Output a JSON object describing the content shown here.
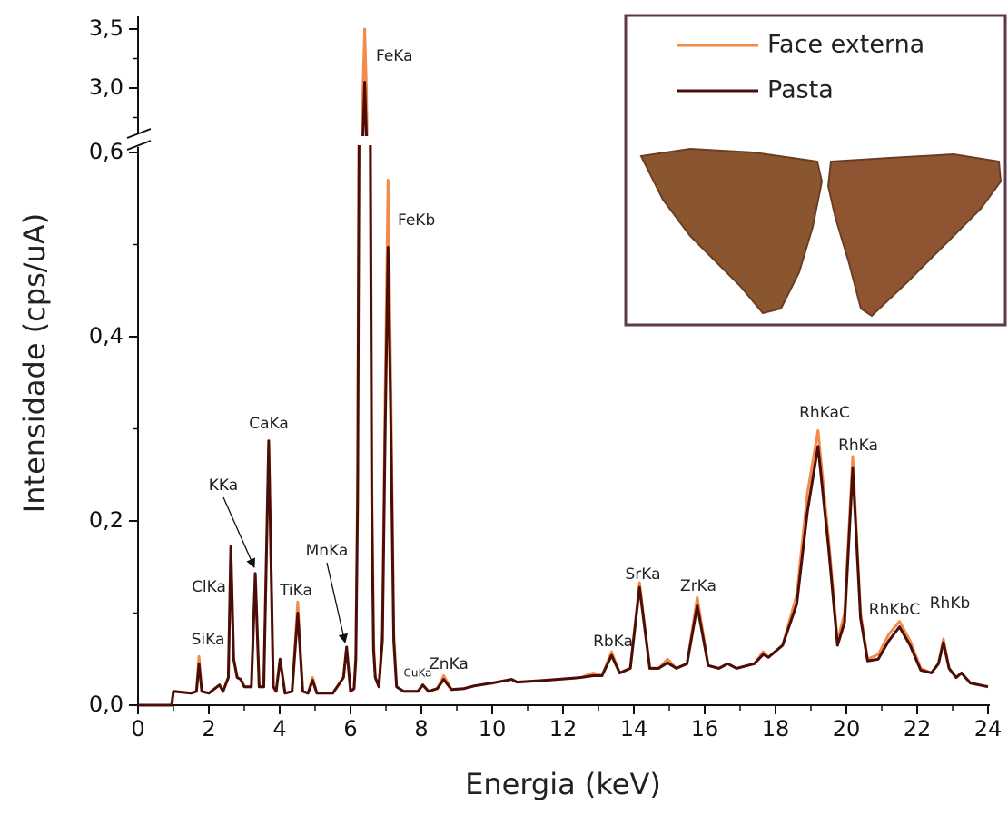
{
  "chart_data": {
    "type": "line",
    "x_label": "Energia (keV)",
    "y_label": "Intensidade (cps/uA)",
    "xlim": [
      0,
      24
    ],
    "xticks": [
      0,
      2,
      4,
      6,
      8,
      10,
      12,
      14,
      16,
      18,
      20,
      22,
      24
    ],
    "xticks_minor": [
      1,
      3,
      5,
      7,
      9,
      11,
      13,
      15,
      17,
      19,
      21,
      23
    ],
    "ylim": [
      0,
      0.6
    ],
    "yticks": [
      {
        "value": 0,
        "label": "0,0"
      },
      {
        "value": 0.2,
        "label": "0,2"
      },
      {
        "value": 0.4,
        "label": "0,4"
      },
      {
        "value": 0.6,
        "label": "0,6"
      }
    ],
    "yticks_minor": [
      0.1,
      0.3,
      0.5
    ],
    "axis_break": true,
    "ylim_top": [
      2.6,
      3.6
    ],
    "yticks_top": [
      {
        "value": 3.0,
        "label": "3,0"
      },
      {
        "value": 3.5,
        "label": "3,5"
      }
    ],
    "yticks_top_minor": [
      2.75,
      3.25
    ],
    "x": [
      0,
      0.95,
      1.0,
      1.5,
      1.65,
      1.72,
      1.8,
      2.0,
      2.3,
      2.4,
      2.55,
      2.62,
      2.7,
      2.8,
      2.9,
      3.0,
      3.2,
      3.31,
      3.42,
      3.55,
      3.69,
      3.82,
      3.9,
      4.01,
      4.15,
      4.35,
      4.51,
      4.65,
      4.8,
      4.93,
      5.05,
      5.5,
      5.8,
      5.89,
      6.0,
      6.1,
      6.15,
      6.2,
      6.25,
      6.3,
      6.35,
      6.4,
      6.45,
      6.5,
      6.55,
      6.6,
      6.65,
      6.7,
      6.8,
      6.9,
      6.98,
      7.06,
      7.14,
      7.22,
      7.3,
      7.5,
      7.9,
      8.04,
      8.2,
      8.45,
      8.63,
      8.85,
      9.2,
      9.5,
      10.0,
      10.55,
      10.7,
      11.5,
      12.5,
      12.85,
      13.1,
      13.37,
      13.6,
      13.9,
      14.16,
      14.45,
      14.7,
      14.95,
      15.2,
      15.5,
      15.79,
      16.1,
      16.4,
      16.65,
      16.9,
      17.4,
      17.65,
      17.8,
      18.2,
      18.6,
      18.9,
      19.2,
      19.5,
      19.75,
      19.95,
      20.18,
      20.4,
      20.6,
      20.9,
      21.2,
      21.5,
      21.8,
      22.1,
      22.4,
      22.6,
      22.74,
      22.9,
      23.1,
      23.25,
      23.5,
      24.0
    ],
    "series": [
      {
        "name": "Face externa",
        "color": "#f28a4a",
        "values": [
          0,
          0,
          0.015,
          0.013,
          0.015,
          0.053,
          0.015,
          0.013,
          0.022,
          0.015,
          0.03,
          0.172,
          0.05,
          0.03,
          0.028,
          0.02,
          0.02,
          0.143,
          0.02,
          0.02,
          0.287,
          0.02,
          0.015,
          0.05,
          0.013,
          0.015,
          0.112,
          0.015,
          0.013,
          0.03,
          0.013,
          0.013,
          0.03,
          0.063,
          0.015,
          0.018,
          0.055,
          0.25,
          0.79,
          1.81,
          2.97,
          3.5,
          2.97,
          1.81,
          0.79,
          0.25,
          0.07,
          0.03,
          0.02,
          0.08,
          0.345,
          0.57,
          0.345,
          0.08,
          0.02,
          0.015,
          0.015,
          0.022,
          0.015,
          0.018,
          0.032,
          0.017,
          0.018,
          0.021,
          0.024,
          0.028,
          0.025,
          0.027,
          0.03,
          0.035,
          0.032,
          0.058,
          0.035,
          0.04,
          0.133,
          0.04,
          0.04,
          0.05,
          0.04,
          0.045,
          0.117,
          0.043,
          0.04,
          0.045,
          0.04,
          0.045,
          0.058,
          0.052,
          0.065,
          0.12,
          0.23,
          0.298,
          0.18,
          0.07,
          0.1,
          0.27,
          0.1,
          0.05,
          0.055,
          0.077,
          0.091,
          0.07,
          0.04,
          0.035,
          0.045,
          0.072,
          0.04,
          0.03,
          0.035,
          0.024,
          0.02
        ]
      },
      {
        "name": "Pasta",
        "color": "#4a0d08",
        "values": [
          0,
          0,
          0.015,
          0.013,
          0.015,
          0.045,
          0.015,
          0.013,
          0.022,
          0.015,
          0.03,
          0.172,
          0.05,
          0.03,
          0.028,
          0.02,
          0.02,
          0.143,
          0.02,
          0.02,
          0.287,
          0.02,
          0.015,
          0.05,
          0.013,
          0.015,
          0.1,
          0.015,
          0.013,
          0.027,
          0.013,
          0.013,
          0.03,
          0.063,
          0.015,
          0.018,
          0.05,
          0.22,
          0.69,
          1.58,
          2.59,
          3.05,
          2.59,
          1.58,
          0.69,
          0.22,
          0.06,
          0.03,
          0.02,
          0.07,
          0.3,
          0.497,
          0.3,
          0.07,
          0.02,
          0.015,
          0.015,
          0.022,
          0.015,
          0.018,
          0.028,
          0.017,
          0.018,
          0.021,
          0.024,
          0.028,
          0.025,
          0.027,
          0.03,
          0.032,
          0.032,
          0.054,
          0.035,
          0.04,
          0.128,
          0.04,
          0.04,
          0.046,
          0.04,
          0.045,
          0.108,
          0.043,
          0.04,
          0.045,
          0.04,
          0.045,
          0.055,
          0.052,
          0.065,
          0.11,
          0.21,
          0.281,
          0.17,
          0.065,
          0.09,
          0.257,
          0.095,
          0.048,
          0.05,
          0.07,
          0.085,
          0.065,
          0.038,
          0.035,
          0.045,
          0.068,
          0.04,
          0.03,
          0.035,
          0.024,
          0.02
        ]
      }
    ],
    "annotations": [
      "SiKa",
      "ClKa",
      "KKa",
      "CaKa",
      "TiKa",
      "MnKa",
      "FeKa",
      "FeKb",
      "CuKa",
      "ZnKa",
      "RbKa",
      "SrKa",
      "ZrKa",
      "RhKaC",
      "RhKa",
      "RhKbC",
      "RhKb"
    ]
  }
}
